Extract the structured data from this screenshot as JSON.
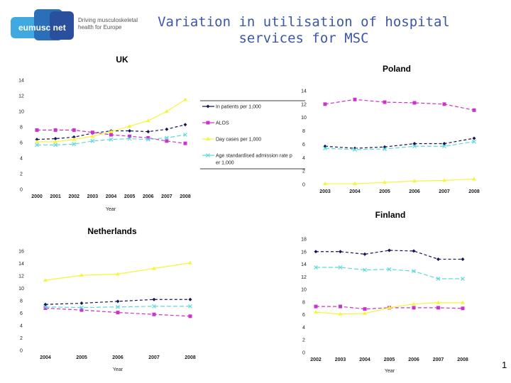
{
  "header": {
    "title": "Variation in utilisation of hospital services for MSC",
    "logo_text": "eumusc net",
    "logo_tagline": "Driving musculoskeletal health for Europe"
  },
  "page_number": "1",
  "colors": {
    "In patients per 1,000": "#14145a",
    "ALOS": "#cc33cc",
    "Day cases per 1,000": "#f5f53a",
    "Age standardised admission rate per 1,000": "#5fd8d8",
    "title": "#3a57a8"
  },
  "chart_data": [
    {
      "type": "line",
      "title": "UK",
      "xlabel": "Year",
      "ylabel": "",
      "ylim": [
        0,
        14
      ],
      "yticks": [
        0,
        2,
        4,
        6,
        8,
        10,
        12,
        14
      ],
      "legend": "right",
      "categories": [
        "2000",
        "2001",
        "2002",
        "2003",
        "2004",
        "2005",
        "2006",
        "2007",
        "2008"
      ],
      "series": [
        {
          "name": "In patients per 1,000",
          "values": [
            6.4,
            6.5,
            6.7,
            7.2,
            7.5,
            7.5,
            7.4,
            7.7,
            8.3
          ]
        },
        {
          "name": "ALOS",
          "values": [
            7.6,
            7.6,
            7.6,
            7.3,
            7.0,
            6.8,
            6.6,
            6.2,
            5.9
          ]
        },
        {
          "name": "Day cases per 1,000",
          "values": [
            6.1,
            6.1,
            6.4,
            6.8,
            7.4,
            8.1,
            8.8,
            10.0,
            11.5
          ]
        },
        {
          "name": "Age standardised admission rate per 1,000",
          "values": [
            5.7,
            5.7,
            5.8,
            6.2,
            6.4,
            6.5,
            6.4,
            6.6,
            7.0
          ]
        }
      ]
    },
    {
      "type": "line",
      "title": "Poland",
      "xlabel": "",
      "ylabel": "",
      "ylim": [
        0,
        14
      ],
      "yticks": [
        0,
        2,
        4,
        6,
        8,
        10,
        12,
        14
      ],
      "categories": [
        "2003",
        "2004",
        "2005",
        "2006",
        "2007",
        "2008"
      ],
      "series": [
        {
          "values": [
            5.7,
            5.4,
            5.6,
            6.1,
            6.1,
            6.9
          ]
        },
        {
          "values": [
            12.0,
            12.7,
            12.3,
            12.2,
            12.0,
            11.1
          ]
        },
        {
          "values": [
            0.1,
            0.1,
            0.3,
            0.5,
            0.6,
            0.8
          ]
        },
        {
          "values": [
            5.4,
            5.2,
            5.3,
            5.7,
            5.7,
            6.4
          ]
        }
      ]
    },
    {
      "type": "line",
      "title": "Netherlands",
      "xlabel": "Year",
      "ylabel": "",
      "ylim": [
        0,
        16
      ],
      "yticks": [
        0,
        2,
        4,
        6,
        8,
        10,
        12,
        14,
        16
      ],
      "categories": [
        "2004",
        "2005",
        "2006",
        "2007",
        "2008"
      ],
      "series": [
        {
          "values": [
            7.4,
            7.6,
            7.9,
            8.2,
            8.2
          ]
        },
        {
          "values": [
            6.8,
            6.5,
            6.1,
            5.8,
            5.5
          ]
        },
        {
          "values": [
            11.3,
            12.1,
            12.3,
            13.2,
            14.1
          ]
        },
        {
          "values": [
            7.0,
            6.9,
            7.0,
            7.1,
            7.1
          ]
        }
      ]
    },
    {
      "type": "line",
      "title": "Finland",
      "xlabel": "Year",
      "ylabel": "",
      "ylim": [
        0,
        18
      ],
      "yticks": [
        0,
        2,
        4,
        6,
        8,
        10,
        12,
        14,
        16,
        18
      ],
      "categories": [
        "2002",
        "2003",
        "2004",
        "2005",
        "2006",
        "2007",
        "2008"
      ],
      "series": [
        {
          "values": [
            16.0,
            16.0,
            15.6,
            16.2,
            16.1,
            14.8,
            14.8
          ]
        },
        {
          "values": [
            7.3,
            7.3,
            6.9,
            7.1,
            7.1,
            7.1,
            7.0
          ]
        },
        {
          "values": [
            6.4,
            6.1,
            6.2,
            7.1,
            7.7,
            7.9,
            7.9
          ]
        },
        {
          "values": [
            13.5,
            13.5,
            13.1,
            13.2,
            12.9,
            11.7,
            11.7
          ]
        }
      ]
    }
  ]
}
